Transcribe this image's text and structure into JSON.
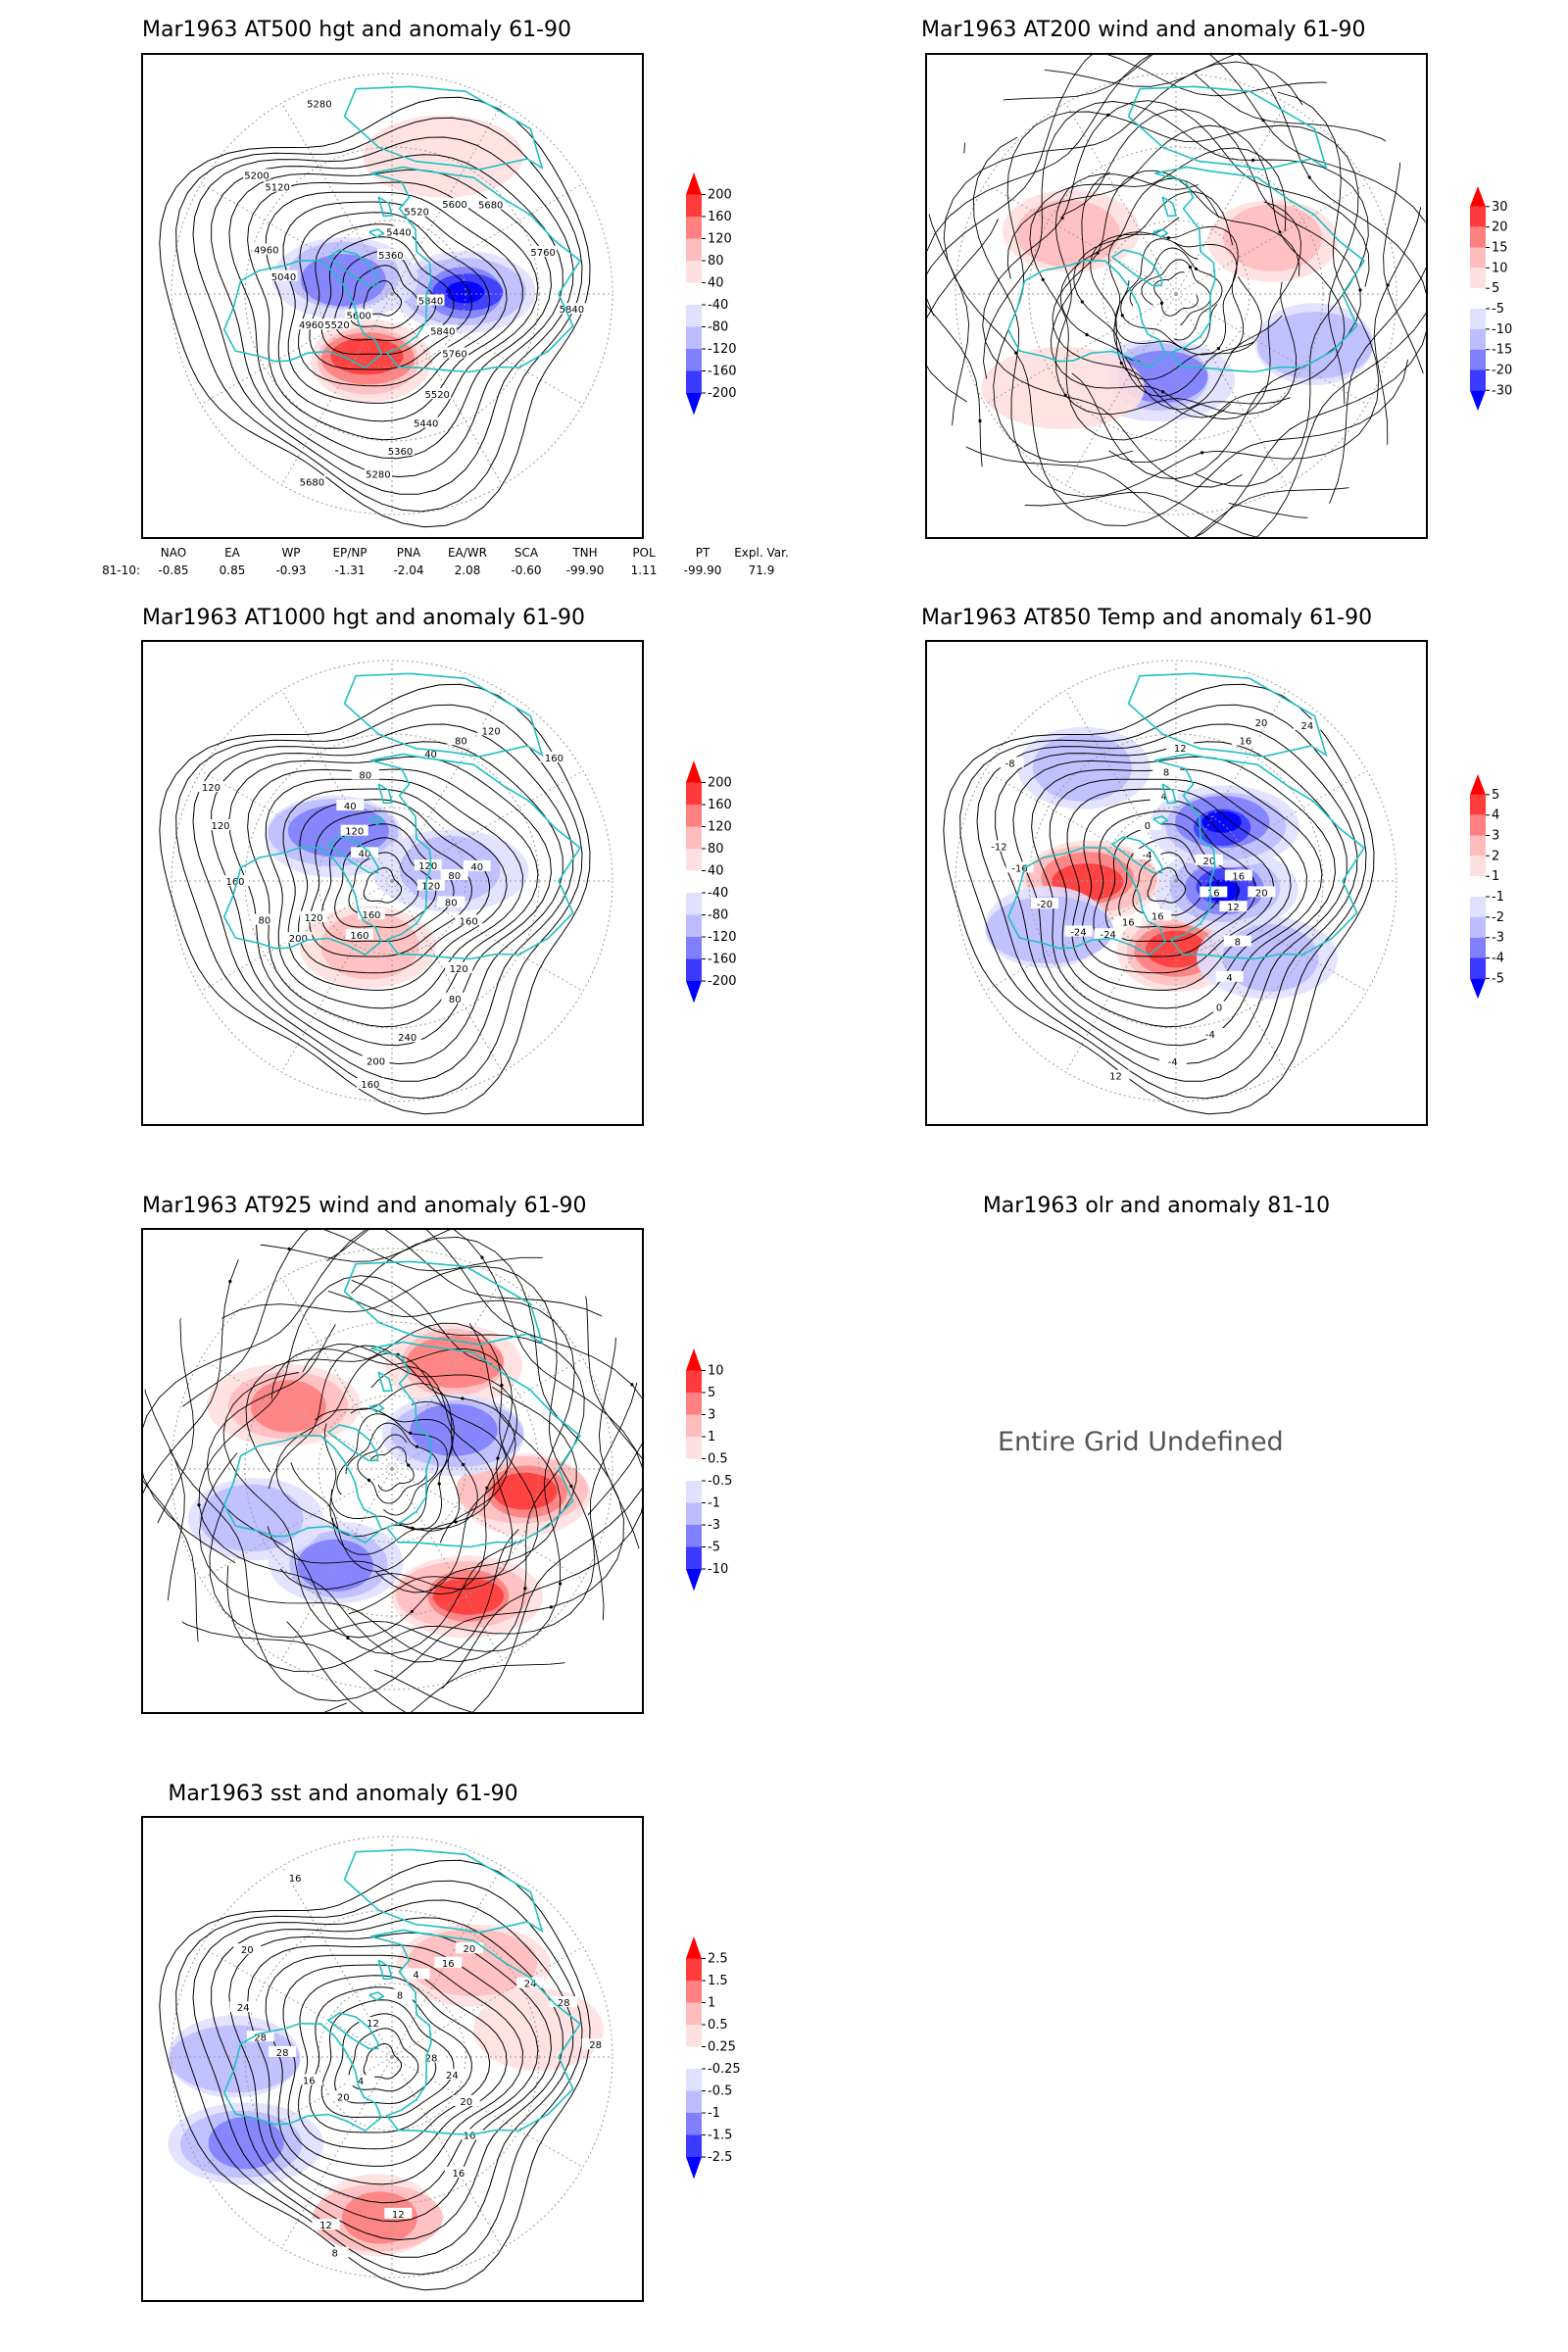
{
  "colors": {
    "coast": "#20c0c0",
    "contour": "#000000",
    "grid": "#9a9a9a",
    "red_scale": [
      "#ff0000",
      "#ff3b3b",
      "#ff8080",
      "#ffbcbc",
      "#ffe0e0"
    ],
    "blue_scale": [
      "#e0e0ff",
      "#bcbcff",
      "#8080ff",
      "#3b3bff",
      "#0000ff"
    ]
  },
  "panels": [
    {
      "id": "p1",
      "title": "Mar1963 AT500 hgt and anomaly 61-90",
      "field": "hgt",
      "colorbar": [
        "200",
        "160",
        "120",
        "80",
        "40",
        "-40",
        "-80",
        "-120",
        "-160",
        "-200"
      ],
      "contour_labels": [
        "5840",
        "5840",
        "5760",
        "5520",
        "5440",
        "5360",
        "5280",
        "5680",
        "5600",
        "5520",
        "4960",
        "5040",
        "4960",
        "5120",
        "5200",
        "5280",
        "5360",
        "5440",
        "5520",
        "5600",
        "5680",
        "5760",
        "5840"
      ],
      "anomalies": [
        {
          "lon": 200,
          "lat": 62,
          "sign": 1,
          "strength": 4
        },
        {
          "lon": 90,
          "lat": 60,
          "sign": -1,
          "strength": 5
        },
        {
          "lon": 290,
          "lat": 70,
          "sign": -1,
          "strength": 3
        },
        {
          "lon": 20,
          "lat": 30,
          "sign": 1,
          "strength": 1
        }
      ]
    },
    {
      "id": "p2",
      "title": "Mar1963 AT200 wind and anomaly 61-90",
      "field": "wind",
      "colorbar": [
        "30",
        "20",
        "15",
        "10",
        "5",
        "-5",
        "-10",
        "-15",
        "-20",
        "-30"
      ],
      "contour_labels": [],
      "anomalies": [
        {
          "lon": 190,
          "lat": 55,
          "sign": -1,
          "strength": 3
        },
        {
          "lon": 300,
          "lat": 40,
          "sign": 1,
          "strength": 2
        },
        {
          "lon": 60,
          "lat": 45,
          "sign": 1,
          "strength": 2
        },
        {
          "lon": 110,
          "lat": 30,
          "sign": -1,
          "strength": 2
        },
        {
          "lon": 230,
          "lat": 30,
          "sign": 1,
          "strength": 1
        }
      ]
    },
    {
      "id": "p3",
      "title": "Mar1963 AT1000 hgt and anomaly 61-90",
      "field": "hgt",
      "colorbar": [
        "200",
        "160",
        "120",
        "80",
        "40",
        "-40",
        "-80",
        "-120",
        "-160",
        "-200"
      ],
      "contour_labels": [
        "120",
        "80",
        "160",
        "120",
        "80",
        "240",
        "200",
        "160",
        "160",
        "160",
        "120",
        "200",
        "80",
        "160",
        "120",
        "120",
        "40",
        "120",
        "40",
        "80",
        "40",
        "80",
        "120",
        "160",
        "120",
        "80",
        "40"
      ],
      "anomalies": [
        {
          "lon": 200,
          "lat": 62,
          "sign": 1,
          "strength": 2
        },
        {
          "lon": 310,
          "lat": 60,
          "sign": -1,
          "strength": 3
        },
        {
          "lon": 80,
          "lat": 65,
          "sign": -1,
          "strength": 2
        }
      ]
    },
    {
      "id": "p4",
      "title": "Mar1963 AT850 Temp and anomaly 61-90",
      "field": "temp",
      "colorbar": [
        "5",
        "4",
        "3",
        "2",
        "1",
        "-1",
        "-2",
        "-3",
        "-4",
        "-5"
      ],
      "contour_labels": [
        "16",
        "12",
        "8",
        "4",
        "0",
        "-4",
        "-4",
        "12",
        "16",
        "16",
        "-24",
        "-24",
        "-20",
        "-16",
        "-12",
        "-8",
        "-4",
        "0",
        "4",
        "8",
        "12",
        "16",
        "20",
        "24",
        "20",
        "16",
        "20"
      ],
      "anomalies": [
        {
          "lon": 180,
          "lat": 62,
          "sign": 1,
          "strength": 4
        },
        {
          "lon": 100,
          "lat": 70,
          "sign": -1,
          "strength": 5
        },
        {
          "lon": 40,
          "lat": 60,
          "sign": -1,
          "strength": 5
        },
        {
          "lon": 270,
          "lat": 55,
          "sign": 1,
          "strength": 4
        },
        {
          "lon": 250,
          "lat": 35,
          "sign": -1,
          "strength": 2
        },
        {
          "lon": 320,
          "lat": 30,
          "sign": -1,
          "strength": 2
        },
        {
          "lon": 130,
          "lat": 40,
          "sign": -1,
          "strength": 2
        }
      ]
    },
    {
      "id": "p5",
      "title": "Mar1963 AT925 wind and anomaly 61-90",
      "field": "wind",
      "colorbar": [
        "10",
        "5",
        "3",
        "1",
        "0.5",
        "-0.5",
        "-1",
        "-3",
        "-5",
        "-10"
      ],
      "contour_labels": [],
      "anomalies": [
        {
          "lon": 150,
          "lat": 30,
          "sign": 1,
          "strength": 4
        },
        {
          "lon": 100,
          "lat": 35,
          "sign": 1,
          "strength": 4
        },
        {
          "lon": 210,
          "lat": 45,
          "sign": -1,
          "strength": 3
        },
        {
          "lon": 300,
          "lat": 40,
          "sign": 1,
          "strength": 3
        },
        {
          "lon": 30,
          "lat": 40,
          "sign": 1,
          "strength": 3
        },
        {
          "lon": 60,
          "lat": 60,
          "sign": -1,
          "strength": 3
        },
        {
          "lon": 250,
          "lat": 30,
          "sign": -1,
          "strength": 2
        }
      ]
    },
    {
      "id": "p6",
      "title": "Mar1963 olr and anomaly 81-10",
      "field": "undefined",
      "message": "Entire Grid Undefined"
    },
    {
      "id": "p7",
      "title": "Mar1963 sst and anomaly 61-90",
      "field": "sst",
      "colorbar": [
        "2.5",
        "1.5",
        "1",
        "0.5",
        "0.25",
        "-0.25",
        "-0.5",
        "-1",
        "-1.5",
        "-2.5"
      ],
      "contour_labels": [
        "28",
        "24",
        "20",
        "16",
        "16",
        "12",
        "12",
        "8",
        "4",
        "20",
        "16",
        "28",
        "28",
        "24",
        "20",
        "16",
        "12",
        "8",
        "4",
        "16",
        "20",
        "24",
        "28",
        "28"
      ],
      "anomalies": [
        {
          "lon": 185,
          "lat": 25,
          "sign": 1,
          "strength": 3
        },
        {
          "lon": 240,
          "lat": 20,
          "sign": -1,
          "strength": 3
        },
        {
          "lon": 270,
          "lat": 25,
          "sign": -1,
          "strength": 2
        },
        {
          "lon": 80,
          "lat": 30,
          "sign": 1,
          "strength": 1
        },
        {
          "lon": 40,
          "lat": 40,
          "sign": 1,
          "strength": 2
        }
      ]
    }
  ],
  "teleconnections": {
    "row_label": "81-10:",
    "headers": [
      "NAO",
      "EA",
      "WP",
      "EP/NP",
      "PNA",
      "EA/WR",
      "SCA",
      "TNH",
      "POL",
      "PT",
      "Expl. Var."
    ],
    "values": [
      "-0.85",
      "0.85",
      "-0.93",
      "-1.31",
      "-2.04",
      "2.08",
      "-0.60",
      "-99.90",
      "1.11",
      "-99.90",
      "71.9"
    ]
  }
}
